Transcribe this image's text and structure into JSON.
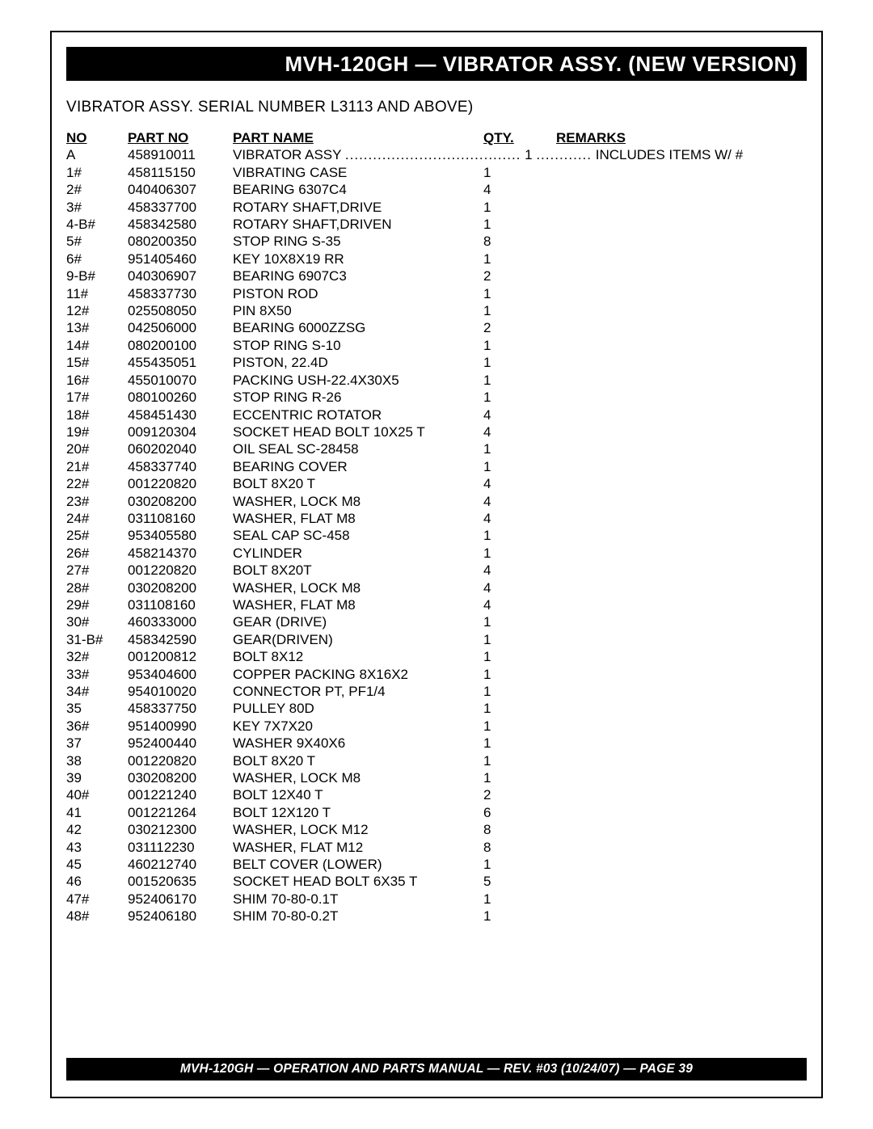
{
  "title": "MVH-120GH — VIBRATOR ASSY. (NEW VERSION)",
  "subtitle": "VIBRATOR ASSY.  SERIAL NUMBER L3113 AND ABOVE)",
  "headers": {
    "no": "NO",
    "partno": "PART NO",
    "partname": "PART NAME",
    "qty": "QTY.",
    "remarks": "REMARKS"
  },
  "first_row": {
    "no": "A",
    "partno": "458910011",
    "partname": "VIBRATOR ASSY",
    "dots1": "......................................",
    "qty": "1",
    "dots2": "............",
    "remarks": "INCLUDES ITEMS W/ #"
  },
  "rows": [
    {
      "no": "1#",
      "partno": "458115150",
      "partname": "VIBRATING CASE",
      "qty": "1"
    },
    {
      "no": "2#",
      "partno": "040406307",
      "partname": "BEARING 6307C4",
      "qty": "4"
    },
    {
      "no": "3#",
      "partno": "458337700",
      "partname": "ROTARY SHAFT,DRIVE",
      "qty": "1"
    },
    {
      "no": "4-B#",
      "partno": "458342580",
      "partname": "ROTARY SHAFT,DRIVEN",
      "qty": "1"
    },
    {
      "no": "5#",
      "partno": "080200350",
      "partname": "STOP RING S-35",
      "qty": "8"
    },
    {
      "no": "6#",
      "partno": "951405460",
      "partname": "KEY 10X8X19 RR",
      "qty": "1"
    },
    {
      "no": "9-B#",
      "partno": "040306907",
      "partname": "BEARING 6907C3",
      "qty": "2"
    },
    {
      "no": "11#",
      "partno": "458337730",
      "partname": "PISTON ROD",
      "qty": "1"
    },
    {
      "no": "12#",
      "partno": "025508050",
      "partname": "PIN 8X50",
      "qty": "1"
    },
    {
      "no": "13#",
      "partno": "042506000",
      "partname": "BEARING 6000ZZSG",
      "qty": "2"
    },
    {
      "no": "14#",
      "partno": "080200100",
      "partname": "STOP RING S-10",
      "qty": "1"
    },
    {
      "no": "15#",
      "partno": "455435051",
      "partname": "PISTON, 22.4D",
      "qty": "1"
    },
    {
      "no": "16#",
      "partno": "455010070",
      "partname": "PACKING USH-22.4X30X5",
      "qty": "1"
    },
    {
      "no": "17#",
      "partno": "080100260",
      "partname": "STOP RING R-26",
      "qty": "1"
    },
    {
      "no": "18#",
      "partno": "458451430",
      "partname": "ECCENTRIC ROTATOR",
      "qty": "4"
    },
    {
      "no": "19#",
      "partno": "009120304",
      "partname": "SOCKET HEAD BOLT 10X25 T",
      "qty": "4"
    },
    {
      "no": "20#",
      "partno": "060202040",
      "partname": "OIL SEAL SC-28458",
      "qty": "1"
    },
    {
      "no": "21#",
      "partno": "458337740",
      "partname": "BEARING COVER",
      "qty": "1"
    },
    {
      "no": "22#",
      "partno": "001220820",
      "partname": "BOLT 8X20 T",
      "qty": "4"
    },
    {
      "no": "23#",
      "partno": "030208200",
      "partname": "WASHER, LOCK M8",
      "qty": "4"
    },
    {
      "no": "24#",
      "partno": "031108160",
      "partname": "WASHER, FLAT M8",
      "qty": "4"
    },
    {
      "no": "25#",
      "partno": "953405580",
      "partname": "SEAL CAP SC-458",
      "qty": "1"
    },
    {
      "no": "26#",
      "partno": "458214370",
      "partname": "CYLINDER",
      "qty": "1"
    },
    {
      "no": "27#",
      "partno": "001220820",
      "partname": "BOLT 8X20T",
      "qty": "4"
    },
    {
      "no": "28#",
      "partno": "030208200",
      "partname": "WASHER, LOCK M8",
      "qty": "4"
    },
    {
      "no": "29#",
      "partno": "031108160",
      "partname": "WASHER, FLAT M8",
      "qty": "4"
    },
    {
      "no": "30#",
      "partno": "460333000",
      "partname": "GEAR (DRIVE)",
      "qty": "1"
    },
    {
      "no": "31-B#",
      "partno": "458342590",
      "partname": "GEAR(DRIVEN)",
      "qty": "1"
    },
    {
      "no": "32#",
      "partno": "001200812",
      "partname": "BOLT 8X12",
      "qty": "1"
    },
    {
      "no": "33#",
      "partno": "953404600",
      "partname": "COPPER PACKING 8X16X2",
      "qty": "1"
    },
    {
      "no": "34#",
      "partno": "954010020",
      "partname": "CONNECTOR PT, PF1/4",
      "qty": "1"
    },
    {
      "no": "35",
      "partno": "458337750",
      "partname": "PULLEY 80D",
      "qty": "1"
    },
    {
      "no": "36#",
      "partno": "951400990",
      "partname": "KEY 7X7X20",
      "qty": "1"
    },
    {
      "no": "37",
      "partno": "952400440",
      "partname": "WASHER 9X40X6",
      "qty": "1"
    },
    {
      "no": "38",
      "partno": "001220820",
      "partname": "BOLT 8X20 T",
      "qty": "1"
    },
    {
      "no": "39",
      "partno": "030208200",
      "partname": "WASHER, LOCK M8",
      "qty": "1"
    },
    {
      "no": "40#",
      "partno": "001221240",
      "partname": "BOLT 12X40 T",
      "qty": "2"
    },
    {
      "no": "41",
      "partno": "001221264",
      "partname": "BOLT 12X120 T",
      "qty": "6"
    },
    {
      "no": "42",
      "partno": "030212300",
      "partname": "WASHER, LOCK M12",
      "qty": "8"
    },
    {
      "no": "43",
      "partno": "031112230",
      "partname": "WASHER, FLAT M12",
      "qty": "8"
    },
    {
      "no": "45",
      "partno": "460212740",
      "partname": "BELT COVER (LOWER)",
      "qty": "1"
    },
    {
      "no": "46",
      "partno": "001520635",
      "partname": "SOCKET HEAD BOLT 6X35 T",
      "qty": "5"
    },
    {
      "no": "47#",
      "partno": "952406170",
      "partname": "SHIM 70-80-0.1T",
      "qty": "1"
    },
    {
      "no": "48#",
      "partno": "952406180",
      "partname": "SHIM 70-80-0.2T",
      "qty": "1"
    }
  ],
  "footer": "MVH-120GH — OPERATION AND PARTS  MANUAL — REV. #03 (10/24/07) — PAGE 39"
}
